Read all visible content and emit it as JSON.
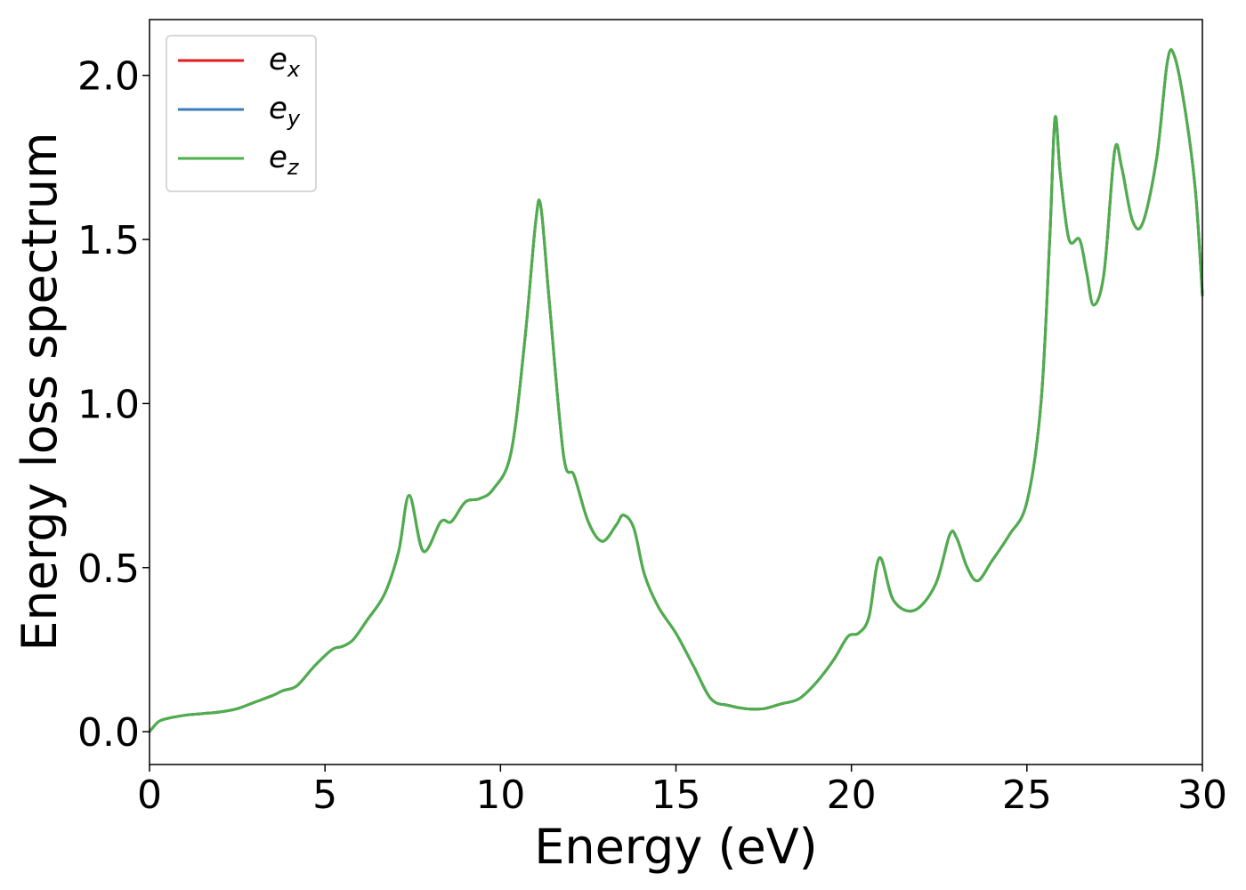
{
  "chart_data": {
    "type": "line",
    "xlabel": "Energy (eV)",
    "ylabel": "Energy loss spectrum",
    "xlim": [
      0,
      30
    ],
    "ylim": [
      -0.1,
      2.17
    ],
    "xticks": [
      0,
      5,
      10,
      15,
      20,
      25,
      30
    ],
    "xtick_labels": [
      "0",
      "5",
      "10",
      "15",
      "20",
      "25",
      "30"
    ],
    "yticks": [
      0.0,
      0.5,
      1.0,
      1.5,
      2.0
    ],
    "ytick_labels": [
      "0.0",
      "0.5",
      "1.0",
      "1.5",
      "2.0"
    ],
    "grid": false,
    "legend_position": "top-left",
    "x": [
      0,
      0.25,
      0.5,
      1.0,
      1.5,
      2.0,
      2.5,
      3.0,
      3.5,
      3.8,
      4.2,
      4.7,
      5.2,
      5.5,
      5.8,
      6.2,
      6.7,
      7.1,
      7.4,
      7.8,
      8.3,
      8.6,
      9.0,
      9.4,
      9.8,
      10.3,
      10.7,
      11.0,
      11.15,
      11.4,
      11.8,
      12.1,
      12.5,
      12.9,
      13.3,
      13.5,
      13.8,
      14.1,
      14.5,
      15.0,
      15.5,
      16.0,
      16.5,
      17.0,
      17.5,
      18.0,
      18.5,
      19.0,
      19.5,
      19.9,
      20.2,
      20.5,
      20.8,
      21.2,
      21.8,
      22.4,
      22.8,
      23.0,
      23.3,
      23.6,
      24.0,
      24.5,
      25.0,
      25.4,
      25.65,
      25.8,
      25.95,
      26.2,
      26.5,
      26.7,
      26.9,
      27.2,
      27.5,
      27.7,
      28.0,
      28.3,
      28.7,
      29.0,
      29.2,
      29.5,
      29.8,
      30.0
    ],
    "series": [
      {
        "name": "e_x",
        "color": "#e41a1c",
        "values": [
          0.0,
          0.03,
          0.04,
          0.05,
          0.055,
          0.06,
          0.07,
          0.09,
          0.11,
          0.125,
          0.14,
          0.2,
          0.25,
          0.26,
          0.28,
          0.34,
          0.42,
          0.55,
          0.72,
          0.55,
          0.64,
          0.64,
          0.7,
          0.71,
          0.74,
          0.85,
          1.2,
          1.55,
          1.6,
          1.3,
          0.84,
          0.78,
          0.64,
          0.58,
          0.63,
          0.66,
          0.62,
          0.48,
          0.38,
          0.3,
          0.2,
          0.1,
          0.08,
          0.07,
          0.07,
          0.085,
          0.1,
          0.15,
          0.22,
          0.29,
          0.3,
          0.35,
          0.53,
          0.4,
          0.37,
          0.45,
          0.6,
          0.59,
          0.5,
          0.46,
          0.52,
          0.6,
          0.7,
          1.0,
          1.5,
          1.87,
          1.7,
          1.5,
          1.5,
          1.4,
          1.3,
          1.4,
          1.77,
          1.72,
          1.56,
          1.55,
          1.75,
          2.04,
          2.06,
          1.9,
          1.65,
          1.33
        ]
      },
      {
        "name": "e_y",
        "color": "#377eb8",
        "values": [
          0.0,
          0.03,
          0.04,
          0.05,
          0.055,
          0.06,
          0.07,
          0.09,
          0.11,
          0.125,
          0.14,
          0.2,
          0.25,
          0.26,
          0.28,
          0.34,
          0.42,
          0.55,
          0.72,
          0.55,
          0.64,
          0.64,
          0.7,
          0.71,
          0.74,
          0.85,
          1.2,
          1.55,
          1.6,
          1.3,
          0.84,
          0.78,
          0.64,
          0.58,
          0.63,
          0.66,
          0.62,
          0.48,
          0.38,
          0.3,
          0.2,
          0.1,
          0.08,
          0.07,
          0.07,
          0.085,
          0.1,
          0.15,
          0.22,
          0.29,
          0.3,
          0.35,
          0.53,
          0.4,
          0.37,
          0.45,
          0.6,
          0.59,
          0.5,
          0.46,
          0.52,
          0.6,
          0.7,
          1.0,
          1.5,
          1.87,
          1.7,
          1.5,
          1.5,
          1.4,
          1.3,
          1.4,
          1.77,
          1.72,
          1.56,
          1.55,
          1.75,
          2.04,
          2.06,
          1.9,
          1.65,
          1.33
        ]
      },
      {
        "name": "e_z",
        "color": "#4daf4a",
        "values": [
          0.0,
          0.03,
          0.04,
          0.05,
          0.055,
          0.06,
          0.07,
          0.09,
          0.11,
          0.125,
          0.14,
          0.2,
          0.25,
          0.26,
          0.28,
          0.34,
          0.42,
          0.55,
          0.72,
          0.55,
          0.64,
          0.64,
          0.7,
          0.71,
          0.74,
          0.85,
          1.2,
          1.55,
          1.6,
          1.3,
          0.84,
          0.78,
          0.64,
          0.58,
          0.63,
          0.66,
          0.62,
          0.48,
          0.38,
          0.3,
          0.2,
          0.1,
          0.08,
          0.07,
          0.07,
          0.085,
          0.1,
          0.15,
          0.22,
          0.29,
          0.3,
          0.35,
          0.53,
          0.4,
          0.37,
          0.45,
          0.6,
          0.59,
          0.5,
          0.46,
          0.52,
          0.6,
          0.7,
          1.0,
          1.5,
          1.87,
          1.7,
          1.5,
          1.5,
          1.4,
          1.3,
          1.4,
          1.77,
          1.72,
          1.56,
          1.55,
          1.75,
          2.04,
          2.06,
          1.9,
          1.65,
          1.33
        ]
      }
    ],
    "legend": [
      {
        "base": "e",
        "sub": "x"
      },
      {
        "base": "e",
        "sub": "y"
      },
      {
        "base": "e",
        "sub": "z"
      }
    ]
  }
}
